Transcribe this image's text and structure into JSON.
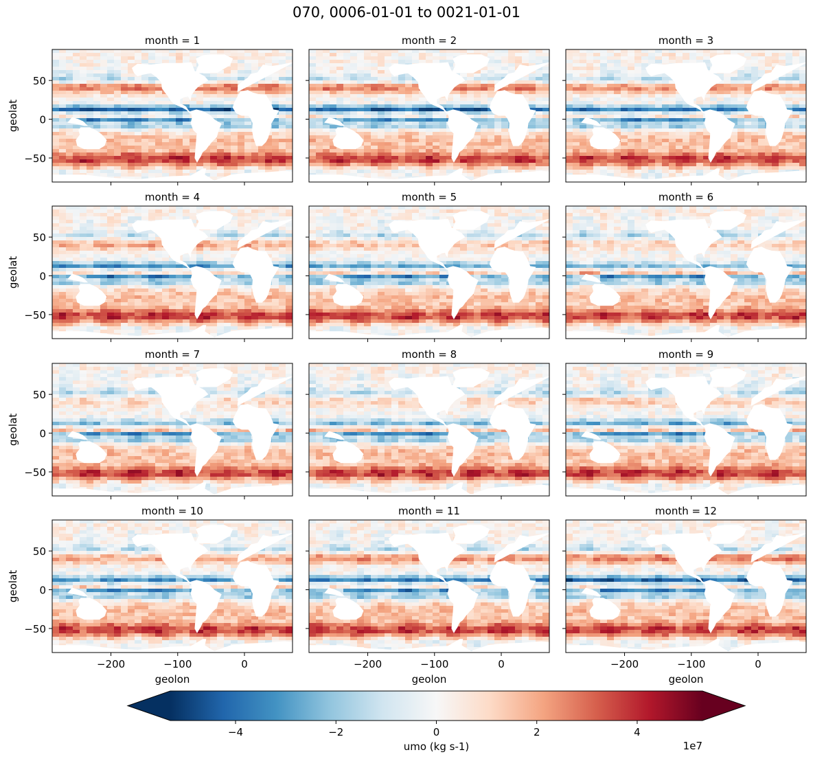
{
  "chart_data": {
    "type": "heatmap",
    "title": "070, 0006-01-01 to 0021-01-01",
    "xlabel": "geolon",
    "ylabel": "geolat",
    "xlim": [
      -288,
      72
    ],
    "ylim": [
      -81,
      90
    ],
    "xticks": [
      -200,
      -100,
      0
    ],
    "xtick_labels": [
      "−200",
      "−100",
      "0"
    ],
    "yticks": [
      50,
      0,
      -50
    ],
    "ytick_labels": [
      "50",
      "0",
      "−50"
    ],
    "panels": [
      {
        "title": "month = 1"
      },
      {
        "title": "month = 2"
      },
      {
        "title": "month = 3"
      },
      {
        "title": "month = 4"
      },
      {
        "title": "month = 5"
      },
      {
        "title": "month = 6"
      },
      {
        "title": "month = 7"
      },
      {
        "title": "month = 8"
      },
      {
        "title": "month = 9"
      },
      {
        "title": "month = 10"
      },
      {
        "title": "month = 11"
      },
      {
        "title": "month = 12"
      }
    ],
    "colorbar": {
      "label": "umo (kg s-1)",
      "cmap": "RdBu_r",
      "range": [
        -5.3,
        5.3
      ],
      "ticks": [
        -4,
        -2,
        0,
        2,
        4
      ],
      "tick_labels": [
        "−4",
        "−2",
        "0",
        "2",
        "4"
      ],
      "scale_label": "1e7",
      "extend": "both"
    }
  },
  "colors": {
    "negative_strong": "#053061",
    "positive_strong": "#67001f",
    "neutral": "#f7f7f7",
    "land": "#ffffff"
  }
}
